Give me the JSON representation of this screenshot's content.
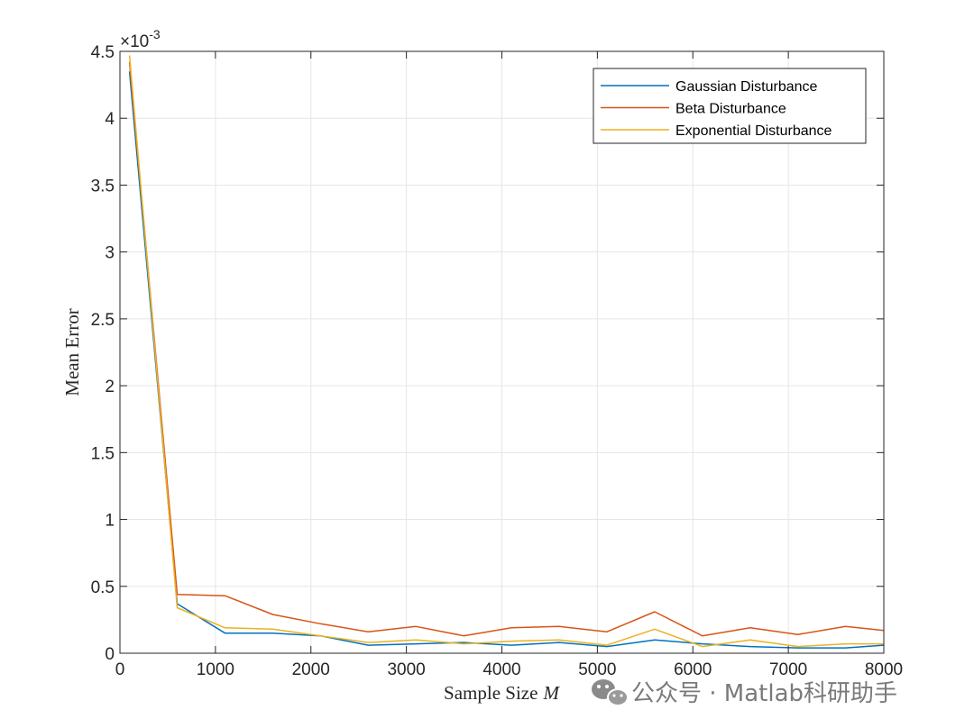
{
  "chart_data": {
    "type": "line",
    "title": "",
    "xlabel": "Sample Size",
    "xlabel_var": "M",
    "ylabel": "Mean Error",
    "y_exponent_label": "×10",
    "y_exponent_power": "-3",
    "xlim": [
      0,
      8000
    ],
    "ylim": [
      0,
      4.5
    ],
    "x_ticks": [
      0,
      1000,
      2000,
      3000,
      4000,
      5000,
      6000,
      7000,
      8000
    ],
    "x_tick_labels": [
      "0",
      "1000",
      "2000",
      "3000",
      "4000",
      "5000",
      "6000",
      "7000",
      "8000"
    ],
    "y_ticks": [
      0,
      0.5,
      1,
      1.5,
      2,
      2.5,
      3,
      3.5,
      4,
      4.5
    ],
    "y_tick_labels": [
      "0",
      "0.5",
      "1",
      "1.5",
      "2",
      "2.5",
      "3",
      "3.5",
      "4",
      "4.5"
    ],
    "grid": true,
    "legend_position": "top-right",
    "x": [
      100,
      600,
      1100,
      1600,
      2100,
      2600,
      3100,
      3600,
      4100,
      4600,
      5100,
      5600,
      6100,
      6600,
      7100,
      7600,
      8000
    ],
    "series": [
      {
        "name": "Gaussian Disturbance",
        "color": "#0072BD",
        "values": [
          4.35,
          0.37,
          0.15,
          0.15,
          0.13,
          0.06,
          0.07,
          0.08,
          0.06,
          0.08,
          0.05,
          0.1,
          0.07,
          0.05,
          0.04,
          0.04,
          0.06
        ]
      },
      {
        "name": "Beta Disturbance",
        "color": "#D95319",
        "values": [
          4.42,
          0.44,
          0.43,
          0.29,
          0.22,
          0.16,
          0.2,
          0.13,
          0.19,
          0.2,
          0.16,
          0.31,
          0.13,
          0.19,
          0.14,
          0.2,
          0.17
        ]
      },
      {
        "name": "Exponential Disturbance",
        "color": "#EDB120",
        "values": [
          4.47,
          0.34,
          0.19,
          0.18,
          0.13,
          0.08,
          0.1,
          0.07,
          0.09,
          0.1,
          0.06,
          0.18,
          0.05,
          0.1,
          0.05,
          0.07,
          0.07
        ]
      }
    ]
  },
  "watermark": {
    "text": "公众号 · Matlab科研助手",
    "icon": "wechat-icon"
  }
}
